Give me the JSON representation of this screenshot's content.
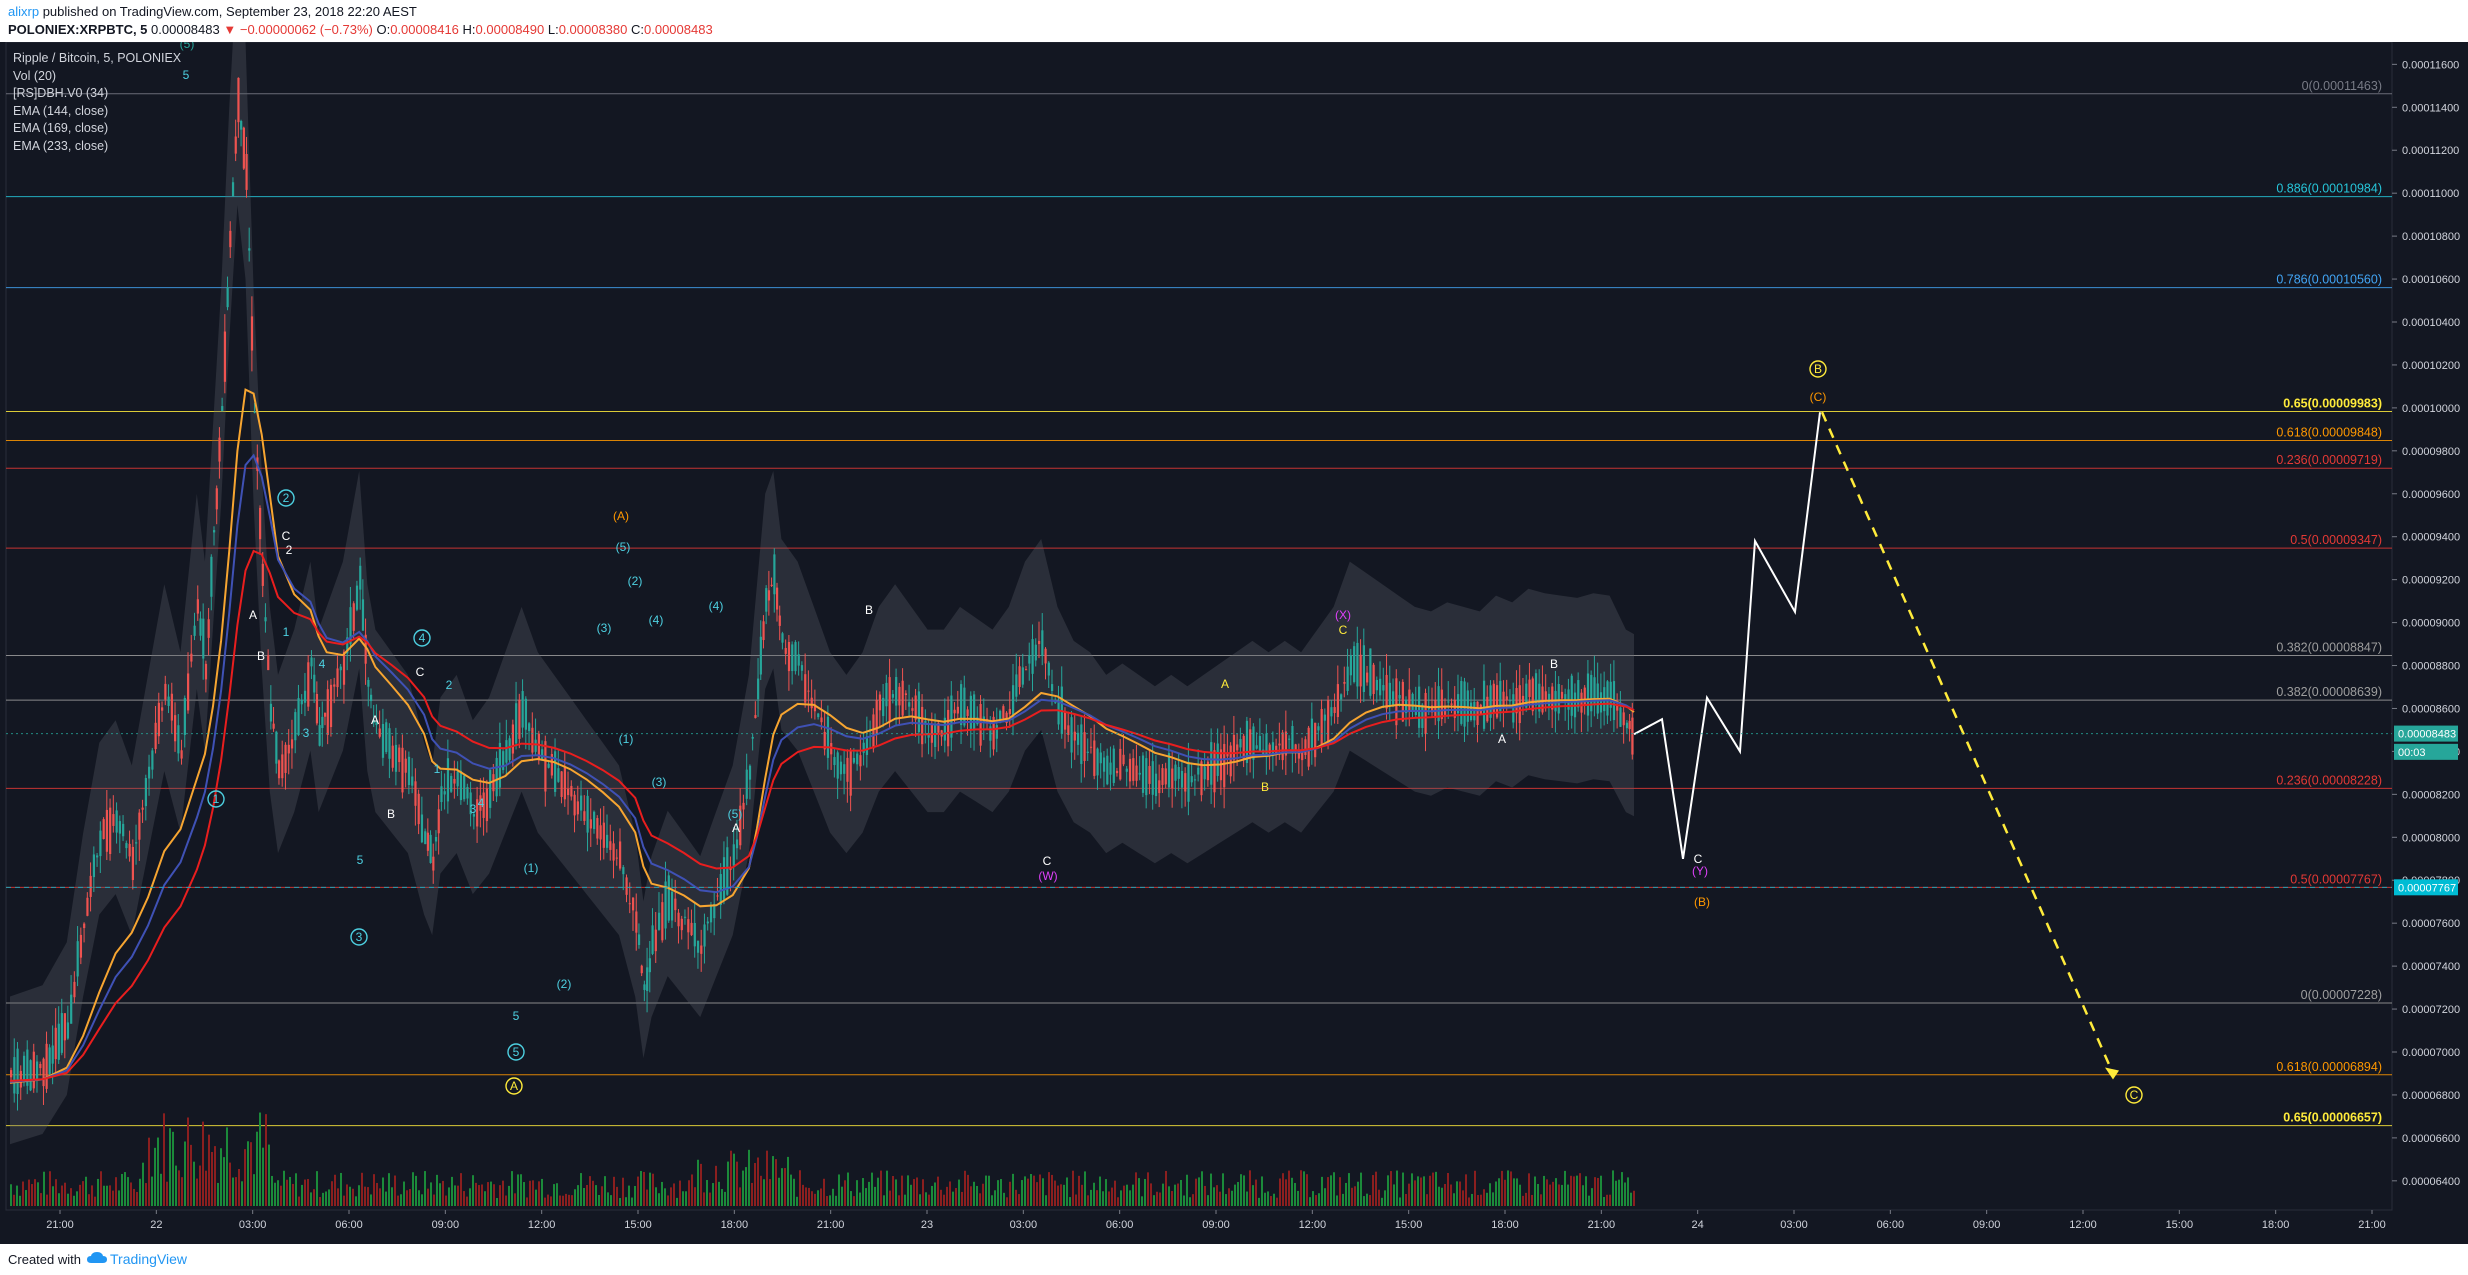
{
  "header": {
    "user": "alixrp",
    "published": "published on TradingView.com, September 23, 2018 22:20 AEST",
    "symbol": "POLONIEX:XRPBTC, 5",
    "last": "0.00008483",
    "change": "−0.00000062 (−0.73%)",
    "o_label": "O:",
    "o": "0.00008416",
    "h_label": "H:",
    "h": "0.00008490",
    "l_label": "L:",
    "l": "0.00008380",
    "c_label": "C:",
    "c": "0.00008483"
  },
  "legend": {
    "title": "Ripple / Bitcoin, 5, POLONIEX",
    "items": [
      "Vol (20)",
      "[RS]DBH.V0 (34)",
      "EMA (144, close)",
      "EMA (169, close)",
      "EMA (233, close)"
    ]
  },
  "footer": {
    "created_with": "Created with",
    "brand": "TradingView"
  },
  "colors": {
    "bg": "#131722",
    "up": "#26a69a",
    "down": "#ef5350",
    "ema144": "#f7a531",
    "ema169": "#3f51b5",
    "ema233": "#e91e1e"
  },
  "chart_data": {
    "type": "candlestick",
    "ylim": [
      6.32e-05,
      0.0001176
    ],
    "y_ticks": [
      "0.00011600",
      "0.00011400",
      "0.00011200",
      "0.00011000",
      "0.00010800",
      "0.00010600",
      "0.00010400",
      "0.00010200",
      "0.00010000",
      "0.00009800",
      "0.00009600",
      "0.00009400",
      "0.00009200",
      "0.00009000",
      "0.00008800",
      "0.00008600",
      "0.00008400",
      "0.00008200",
      "0.00008000",
      "0.00007800",
      "0.00007600",
      "0.00007400",
      "0.00007200",
      "0.00007000",
      "0.00006800",
      "0.00006600",
      "0.00006400"
    ],
    "x_ticks": [
      "21:00",
      "22",
      "03:00",
      "06:00",
      "09:00",
      "12:00",
      "15:00",
      "18:00",
      "21:00",
      "23",
      "03:00",
      "06:00",
      "09:00",
      "12:00",
      "15:00",
      "18:00",
      "21:00",
      "24",
      "03:00",
      "06:00",
      "09:00",
      "12:00",
      "15:00",
      "18:00",
      "21:00"
    ],
    "price_labels": [
      {
        "text": "0.00008483",
        "y": 8.483e-05,
        "color": "#26a69a"
      },
      {
        "text": "00:03",
        "y": 8.398e-05,
        "color": "#26a69a"
      },
      {
        "text": "0.00007767",
        "y": 7.767e-05,
        "color": "#00bcd4"
      }
    ],
    "fib_levels": [
      {
        "label": "0(0.00011463)",
        "y": 0.00011463,
        "color": "#787b86",
        "group": "a"
      },
      {
        "label": "0.886(0.00010984)",
        "y": 0.00010984,
        "color": "#26c6da",
        "group": "a"
      },
      {
        "label": "0.786(0.00010560)",
        "y": 0.0001056,
        "color": "#42a5f5",
        "group": "a"
      },
      {
        "label": "0.65(0.00009983)",
        "y": 9.983e-05,
        "color": "#ffeb3b",
        "group": "a",
        "bold": true
      },
      {
        "label": "0.618(0.00009848)",
        "y": 9.848e-05,
        "color": "#ff9800",
        "group": "a"
      },
      {
        "label": "0.236(0.00009719)",
        "y": 9.719e-05,
        "color": "#e53935",
        "group": "b"
      },
      {
        "label": "0.5(0.00009347)",
        "y": 9.347e-05,
        "color": "#e53935",
        "group": "b"
      },
      {
        "label": "0.382(0.00008847)",
        "y": 8.847e-05,
        "color": "#9e9e9e",
        "group": "a"
      },
      {
        "label": "0.382(0.00008639)",
        "y": 8.639e-05,
        "color": "#9e9e9e",
        "group": "a"
      },
      {
        "label": "0.236(0.00008228)",
        "y": 8.228e-05,
        "color": "#e53935",
        "group": "b"
      },
      {
        "label": "0.5(0.00007767)",
        "y": 7.767e-05,
        "color": "#e53935",
        "group": "b"
      },
      {
        "label": "0(0.00007228)",
        "y": 7.228e-05,
        "color": "#9e9e9e",
        "group": "a"
      },
      {
        "label": "0.618(0.00006894)",
        "y": 6.894e-05,
        "color": "#ff9800",
        "group": "a"
      },
      {
        "label": "0.65(0.00006657)",
        "y": 6.657e-05,
        "color": "#ffeb3b",
        "group": "a",
        "bold": true
      }
    ],
    "price_path": [
      [
        0.0,
        6.88e-05
      ],
      [
        0.02,
        6.93e-05
      ],
      [
        0.035,
        7.12e-05
      ],
      [
        0.045,
        7.6e-05
      ],
      [
        0.055,
        8e-05
      ],
      [
        0.065,
        8.1e-05
      ],
      [
        0.075,
        7.9e-05
      ],
      [
        0.085,
        8.3e-05
      ],
      [
        0.095,
        8.7e-05
      ],
      [
        0.105,
        8.4e-05
      ],
      [
        0.115,
        9.1e-05
      ],
      [
        0.12,
        8.8e-05
      ],
      [
        0.125,
        9.4e-05
      ],
      [
        0.13,
        0.0001
      ],
      [
        0.135,
        0.000108
      ],
      [
        0.14,
        0.0001146
      ],
      [
        0.145,
        0.000111
      ],
      [
        0.15,
        0.0001
      ],
      [
        0.155,
        9.2e-05
      ],
      [
        0.16,
        8.6e-05
      ],
      [
        0.165,
        8.3e-05
      ],
      [
        0.175,
        8.5e-05
      ],
      [
        0.185,
        8.8e-05
      ],
      [
        0.19,
        8.5e-05
      ],
      [
        0.195,
        8.6e-05
      ],
      [
        0.205,
        8.8e-05
      ],
      [
        0.215,
        9.2e-05
      ],
      [
        0.22,
        8.7e-05
      ],
      [
        0.225,
        8.5e-05
      ],
      [
        0.235,
        8.4e-05
      ],
      [
        0.245,
        8.3e-05
      ],
      [
        0.255,
        8e-05
      ],
      [
        0.26,
        7.9e-05
      ],
      [
        0.265,
        8.2e-05
      ],
      [
        0.275,
        8.3e-05
      ],
      [
        0.285,
        8.1e-05
      ],
      [
        0.295,
        8.2e-05
      ],
      [
        0.305,
        8.4e-05
      ],
      [
        0.315,
        8.6e-05
      ],
      [
        0.325,
        8.4e-05
      ],
      [
        0.335,
        8.3e-05
      ],
      [
        0.345,
        8.2e-05
      ],
      [
        0.355,
        8.1e-05
      ],
      [
        0.365,
        8e-05
      ],
      [
        0.375,
        7.9e-05
      ],
      [
        0.385,
        7.6e-05
      ],
      [
        0.39,
        7.3e-05
      ],
      [
        0.395,
        7.5e-05
      ],
      [
        0.405,
        7.7e-05
      ],
      [
        0.415,
        7.6e-05
      ],
      [
        0.425,
        7.5e-05
      ],
      [
        0.435,
        7.7e-05
      ],
      [
        0.445,
        7.9e-05
      ],
      [
        0.455,
        8.3e-05
      ],
      [
        0.46,
        8.7e-05
      ],
      [
        0.465,
        9.1e-05
      ],
      [
        0.47,
        9.2e-05
      ],
      [
        0.475,
        8.9e-05
      ],
      [
        0.485,
        8.8e-05
      ],
      [
        0.495,
        8.6e-05
      ],
      [
        0.505,
        8.4e-05
      ],
      [
        0.515,
        8.3e-05
      ],
      [
        0.525,
        8.4e-05
      ],
      [
        0.535,
        8.6e-05
      ],
      [
        0.545,
        8.7e-05
      ],
      [
        0.555,
        8.6e-05
      ],
      [
        0.565,
        8.5e-05
      ],
      [
        0.575,
        8.5e-05
      ],
      [
        0.585,
        8.6e-05
      ],
      [
        0.595,
        8.55e-05
      ],
      [
        0.605,
        8.5e-05
      ],
      [
        0.615,
        8.6e-05
      ],
      [
        0.625,
        8.8e-05
      ],
      [
        0.635,
        8.9e-05
      ],
      [
        0.645,
        8.6e-05
      ],
      [
        0.655,
        8.45e-05
      ],
      [
        0.665,
        8.4e-05
      ],
      [
        0.675,
        8.3e-05
      ],
      [
        0.685,
        8.35e-05
      ],
      [
        0.695,
        8.3e-05
      ],
      [
        0.705,
        8.25e-05
      ],
      [
        0.715,
        8.3e-05
      ],
      [
        0.725,
        8.25e-05
      ],
      [
        0.735,
        8.3e-05
      ],
      [
        0.745,
        8.35e-05
      ],
      [
        0.755,
        8.4e-05
      ],
      [
        0.765,
        8.45e-05
      ],
      [
        0.775,
        8.4e-05
      ],
      [
        0.785,
        8.45e-05
      ],
      [
        0.795,
        8.4e-05
      ],
      [
        0.805,
        8.5e-05
      ],
      [
        0.815,
        8.6e-05
      ],
      [
        0.825,
        8.8e-05
      ],
      [
        0.835,
        8.75e-05
      ],
      [
        0.845,
        8.7e-05
      ],
      [
        0.855,
        8.65e-05
      ],
      [
        0.865,
        8.6e-05
      ],
      [
        0.875,
        8.58e-05
      ],
      [
        0.885,
        8.62e-05
      ],
      [
        0.895,
        8.6e-05
      ],
      [
        0.905,
        8.58e-05
      ],
      [
        0.915,
        8.65e-05
      ],
      [
        0.925,
        8.62e-05
      ],
      [
        0.935,
        8.68e-05
      ],
      [
        0.945,
        8.66e-05
      ],
      [
        0.955,
        8.65e-05
      ],
      [
        0.965,
        8.64e-05
      ],
      [
        0.975,
        8.66e-05
      ],
      [
        0.985,
        8.65e-05
      ],
      [
        0.995,
        8.5e-05
      ],
      [
        1.0,
        8.48e-05
      ]
    ],
    "projection_path": [
      [
        8.48e-05,
        0
      ],
      [
        8.55e-05,
        1
      ],
      [
        7.9e-05,
        2
      ],
      [
        8.65e-05,
        3
      ],
      [
        8.4e-05,
        4
      ],
      [
        9.38e-05,
        5
      ],
      [
        9.05e-05,
        6
      ],
      [
        9.98e-05,
        7
      ]
    ],
    "projection_dash": [
      [
        9.98e-05,
        0
      ],
      [
        6.9e-05,
        1
      ]
    ],
    "wave_labels": [
      {
        "t": "(5)",
        "c": "#26a69a"
      },
      {
        "t": "5",
        "c": "#4dd0e1"
      },
      {
        "t": "2",
        "c": "#4dd0e1",
        "circ": true
      },
      {
        "t": "C",
        "c": "#ffffff"
      },
      {
        "t": "2",
        "c": "#ffffff"
      },
      {
        "t": "A",
        "c": "#ffffff"
      },
      {
        "t": "1",
        "c": "#4dd0e1"
      },
      {
        "t": "B",
        "c": "#ffffff"
      },
      {
        "t": "4",
        "c": "#4dd0e1"
      },
      {
        "t": "3",
        "c": "#4dd0e1"
      },
      {
        "t": "1",
        "c": "#4dd0e1",
        "circ": true
      },
      {
        "t": "A",
        "c": "#ffffff"
      },
      {
        "t": "B",
        "c": "#ffffff"
      },
      {
        "t": "5",
        "c": "#4dd0e1"
      },
      {
        "t": "3",
        "c": "#4dd0e1",
        "circ": true
      },
      {
        "t": "4",
        "c": "#4dd0e1",
        "circ": true
      },
      {
        "t": "C",
        "c": "#ffffff"
      },
      {
        "t": "2",
        "c": "#4dd0e1"
      },
      {
        "t": "1",
        "c": "#4dd0e1"
      },
      {
        "t": "4",
        "c": "#4dd0e1"
      },
      {
        "t": "3",
        "c": "#4dd0e1"
      },
      {
        "t": "(1)",
        "c": "#4dd0e1"
      },
      {
        "t": "(2)",
        "c": "#4dd0e1"
      },
      {
        "t": "5",
        "c": "#4dd0e1"
      },
      {
        "t": "5",
        "c": "#4dd0e1",
        "circ": true
      },
      {
        "t": "A",
        "c": "#ffeb3b",
        "circ": true
      },
      {
        "t": "(A)",
        "c": "#ff9800"
      },
      {
        "t": "(5)",
        "c": "#4dd0e1"
      },
      {
        "t": "(2)",
        "c": "#4dd0e1"
      },
      {
        "t": "(3)",
        "c": "#4dd0e1"
      },
      {
        "t": "(4)",
        "c": "#4dd0e1"
      },
      {
        "t": "(1)",
        "c": "#4dd0e1"
      },
      {
        "t": "(4)",
        "c": "#4dd0e1"
      },
      {
        "t": "(3)",
        "c": "#4dd0e1"
      },
      {
        "t": "(5)",
        "c": "#4dd0e1"
      },
      {
        "t": "A",
        "c": "#ffffff"
      },
      {
        "t": "B",
        "c": "#ffffff"
      },
      {
        "t": "C",
        "c": "#ffffff"
      },
      {
        "t": "(W)",
        "c": "#e040fb"
      },
      {
        "t": "A",
        "c": "#ffeb3b"
      },
      {
        "t": "B",
        "c": "#ffeb3b"
      },
      {
        "t": "(X)",
        "c": "#e040fb"
      },
      {
        "t": "C",
        "c": "#ffeb3b"
      },
      {
        "t": "A",
        "c": "#ffffff"
      },
      {
        "t": "B",
        "c": "#ffffff"
      },
      {
        "t": "C",
        "c": "#ffffff"
      },
      {
        "t": "(Y)",
        "c": "#e040fb"
      },
      {
        "t": "(B)",
        "c": "#ff9800"
      },
      {
        "t": "B",
        "c": "#ffeb3b",
        "circ": true
      },
      {
        "t": "(C)",
        "c": "#ff9800"
      },
      {
        "t": "C",
        "c": "#ffeb3b",
        "circ": true
      }
    ]
  }
}
